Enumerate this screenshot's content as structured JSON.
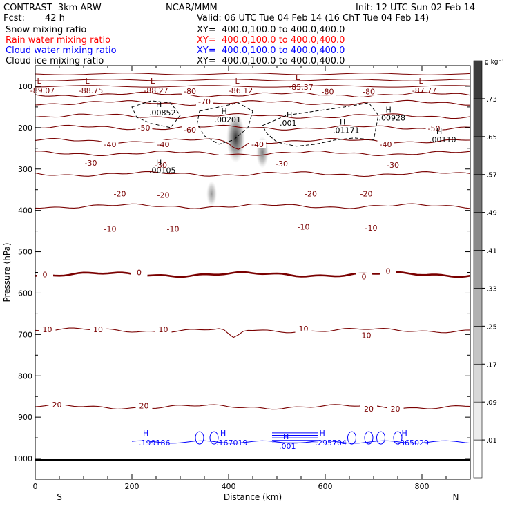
{
  "header": {
    "model": "CONTRAST  3km ARW",
    "org": "NCAR/MMM",
    "init": "Init: 12 UTC Sun 02 Feb 14",
    "fcst_label": "Fcst:",
    "fcst_value": "42 h",
    "valid": "Valid: 06 UTC Tue 04 Feb 14 (16 ChT Tue 04 Feb 14)"
  },
  "fields": [
    {
      "name": "Snow mixing ratio",
      "xy": "XY=  400.0,100.0 to 400.0,400.0",
      "color": "#000000"
    },
    {
      "name": "Rain water mixing ratio",
      "xy": "XY=  400.0,100.0 to 400.0,400.0",
      "color": "#ff0000"
    },
    {
      "name": "Cloud water mixing ratio",
      "xy": "XY=  400.0,100.0 to 400.0,400.0",
      "color": "#0000ff"
    },
    {
      "name": "Cloud ice mixing ratio",
      "xy": "XY=  400.0,100.0 to 400.0,400.0",
      "color": "#000000"
    }
  ],
  "chart_data": {
    "type": "heatmap",
    "xlabel": "Distance (km)",
    "ylabel": "Pressure (hPa)",
    "xlim": [
      0,
      900
    ],
    "ylim": [
      1050,
      50
    ],
    "x_ticks": [
      0,
      200,
      400,
      600,
      800
    ],
    "y_ticks": [
      100,
      200,
      300,
      400,
      500,
      600,
      700,
      800,
      900,
      1000
    ],
    "x_end_labels": {
      "left": "S",
      "right": "N"
    },
    "colorbar": {
      "units": "g kg⁻¹",
      "levels": [
        ".01",
        ".09",
        ".17",
        ".25",
        ".33",
        ".41",
        ".49",
        ".57",
        ".65",
        ".73"
      ]
    },
    "temperature_contours": {
      "units": "C",
      "color": "#7a0000",
      "levels": [
        -80,
        -70,
        -60,
        -50,
        -40,
        -30,
        -20,
        -10,
        0,
        10,
        20
      ],
      "labels": [
        {
          "text": "-80",
          "x": 320,
          "p": 112
        },
        {
          "text": "-80",
          "x": 605,
          "p": 113
        },
        {
          "text": "-80",
          "x": 690,
          "p": 113
        },
        {
          "text": "-70",
          "x": 350,
          "p": 137
        },
        {
          "text": "-60",
          "x": 320,
          "p": 205
        },
        {
          "text": "-50",
          "x": 225,
          "p": 200
        },
        {
          "text": "-50",
          "x": 825,
          "p": 202
        },
        {
          "text": "-40",
          "x": 155,
          "p": 240
        },
        {
          "text": "-40",
          "x": 265,
          "p": 240
        },
        {
          "text": "-40",
          "x": 460,
          "p": 240
        },
        {
          "text": "-40",
          "x": 725,
          "p": 240
        },
        {
          "text": "-30",
          "x": 115,
          "p": 285
        },
        {
          "text": "-30",
          "x": 260,
          "p": 290
        },
        {
          "text": "-30",
          "x": 510,
          "p": 287
        },
        {
          "text": "-30",
          "x": 740,
          "p": 290
        },
        {
          "text": "-20",
          "x": 175,
          "p": 360
        },
        {
          "text": "-20",
          "x": 265,
          "p": 363
        },
        {
          "text": "-20",
          "x": 570,
          "p": 360
        },
        {
          "text": "-20",
          "x": 685,
          "p": 360
        },
        {
          "text": "-10",
          "x": 155,
          "p": 445
        },
        {
          "text": "-10",
          "x": 285,
          "p": 445
        },
        {
          "text": "-10",
          "x": 555,
          "p": 440
        },
        {
          "text": "-10",
          "x": 695,
          "p": 442
        },
        {
          "text": "0",
          "x": 20,
          "p": 555
        },
        {
          "text": "0",
          "x": 215,
          "p": 550
        },
        {
          "text": "0",
          "x": 680,
          "p": 560
        },
        {
          "text": "0",
          "x": 730,
          "p": 547
        },
        {
          "text": "10",
          "x": 25,
          "p": 688
        },
        {
          "text": "10",
          "x": 130,
          "p": 688
        },
        {
          "text": "10",
          "x": 265,
          "p": 688
        },
        {
          "text": "10",
          "x": 555,
          "p": 686
        },
        {
          "text": "10",
          "x": 685,
          "p": 702
        },
        {
          "text": "20",
          "x": 45,
          "p": 870
        },
        {
          "text": "20",
          "x": 225,
          "p": 872
        },
        {
          "text": "20",
          "x": 690,
          "p": 880
        },
        {
          "text": "20",
          "x": 745,
          "p": 880
        }
      ],
      "minima": [
        {
          "text": "-89.07",
          "x": 15,
          "p": 100
        },
        {
          "text": "-88.75",
          "x": 115,
          "p": 100
        },
        {
          "text": "-88.27",
          "x": 250,
          "p": 100
        },
        {
          "text": "-86.12",
          "x": 425,
          "p": 100
        },
        {
          "text": "-85.37",
          "x": 550,
          "p": 92
        },
        {
          "text": "-87.77",
          "x": 805,
          "p": 100
        }
      ]
    },
    "cloud_ice_maxima": [
      {
        "text": ".00852",
        "x": 250,
        "p": 170
      },
      {
        "text": ".00201",
        "x": 385,
        "p": 187
      },
      {
        "text": ".001",
        "x": 520,
        "p": 195
      },
      {
        "text": ".01171",
        "x": 630,
        "p": 213
      },
      {
        "text": ".00928",
        "x": 725,
        "p": 183
      },
      {
        "text": ".00110",
        "x": 830,
        "p": 235
      },
      {
        "text": ".00105",
        "x": 250,
        "p": 310
      }
    ],
    "cloud_water_maxima": [
      {
        "text": ".199186",
        "x": 240,
        "p": 965
      },
      {
        "text": ".167019",
        "x": 400,
        "p": 965
      },
      {
        "text": ".001",
        "x": 530,
        "p": 973
      },
      {
        "text": ".295704",
        "x": 605,
        "p": 965
      },
      {
        "text": ".365029",
        "x": 775,
        "p": 965
      }
    ],
    "snow_maxima": [
      {
        "x": 415,
        "p": 225,
        "value": 0.73
      },
      {
        "x": 470,
        "p": 260,
        "value": 0.3
      },
      {
        "x": 365,
        "p": 360,
        "value": 0.15
      }
    ]
  }
}
